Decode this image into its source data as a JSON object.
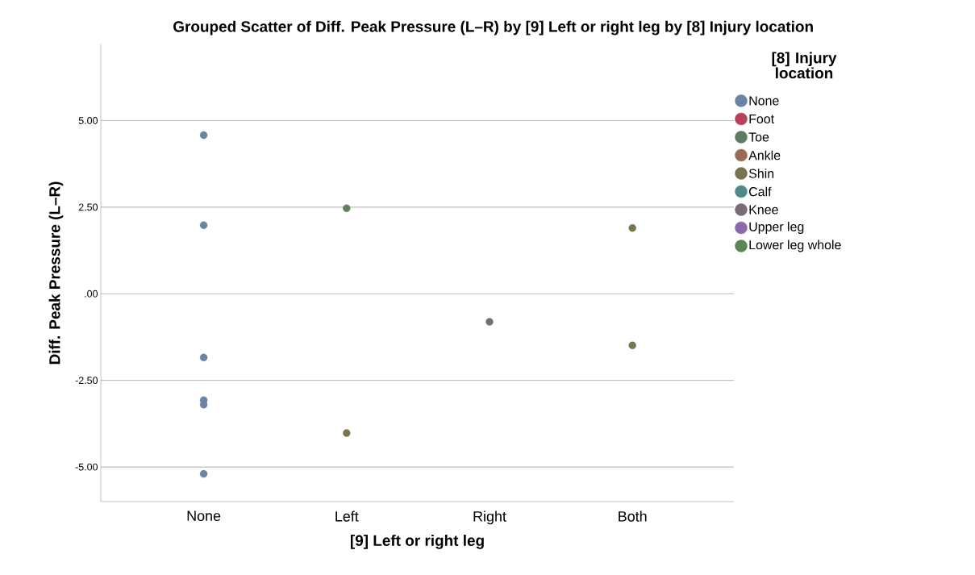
{
  "chart_data": {
    "type": "scatter",
    "title": "Grouped Scatter of Diff. Peak Pressure (L–R) by [9] Left or right leg by [8] Injury location",
    "xlabel": "[9] Left or right leg",
    "ylabel": "Diff. Peak Pressure (L–R)",
    "legend_title": "[8] Injury location",
    "categories": [
      "None",
      "Left",
      "Right",
      "Both"
    ],
    "series": [
      {
        "name": "None",
        "color": "#6a84a6",
        "x": [
          "None",
          "None",
          "None",
          "None",
          "None",
          "None"
        ],
        "values": [
          4.58,
          1.98,
          -1.84,
          -3.07,
          -3.2,
          -5.2
        ]
      },
      {
        "name": "Foot",
        "color": "#b8405a",
        "values": [
          null,
          null,
          null,
          null
        ]
      },
      {
        "name": "Toe",
        "color": "#5e7c62",
        "values": [
          null,
          null,
          null,
          null
        ]
      },
      {
        "name": "Ankle",
        "color": "#9a6a55",
        "values": [
          null,
          null,
          null,
          null
        ]
      },
      {
        "name": "Shin",
        "color": "#7a7350",
        "x": [
          "Left",
          "Both",
          "Both"
        ],
        "values": [
          -4.02,
          1.9,
          -1.49
        ]
      },
      {
        "name": "Calf",
        "color": "#4f8a8a",
        "values": [
          null,
          null,
          null,
          null
        ]
      },
      {
        "name": "Knee",
        "color": "#7e6b78",
        "x": [
          "Right"
        ],
        "values": [
          -0.81
        ]
      },
      {
        "name": "Upper leg",
        "color": "#8a6aa8",
        "values": [
          null,
          null,
          null,
          null
        ]
      },
      {
        "name": "Lower leg whole",
        "color": "#5b8555",
        "x": [
          "Left"
        ],
        "values": [
          2.47
        ]
      }
    ],
    "ylim": [
      -6,
      7.2
    ],
    "yticks": [
      {
        "value": -5,
        "label": "-5.00"
      },
      {
        "value": -2.5,
        "label": "-2.50"
      },
      {
        "value": 0,
        "label": ".00"
      },
      {
        "value": 2.5,
        "label": "2.50"
      },
      {
        "value": 5,
        "label": "5.00"
      }
    ],
    "grid": "y",
    "legend": "right",
    "marker": "circle"
  }
}
